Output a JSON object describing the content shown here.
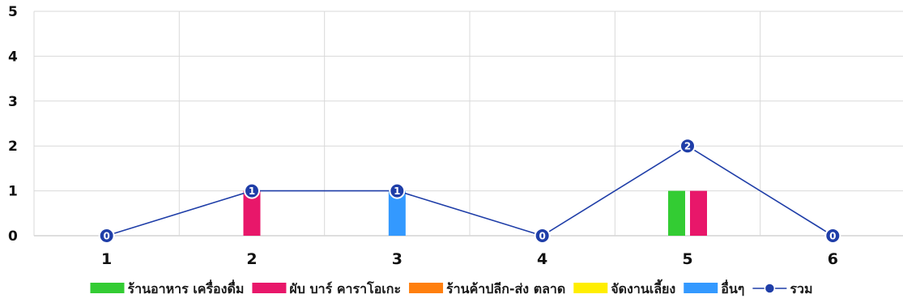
{
  "colors": {
    "background": "#ffffff",
    "grid": "#d9d9d9",
    "axis": "#bdbdbd",
    "total_line": "#1f3ea8",
    "total_marker": "#1f3ea8",
    "total_marker_border": "#ffffff"
  },
  "chart_data": {
    "type": "bar",
    "title": "",
    "xlabel": "",
    "ylabel": "",
    "categories": [
      "1",
      "2",
      "3",
      "4",
      "5",
      "6"
    ],
    "ylim": [
      0,
      5
    ],
    "yticks": [
      "0",
      "1",
      "2",
      "3",
      "4",
      "5"
    ],
    "grid": true,
    "legend_position": "bottom",
    "series": [
      {
        "name": "ร้านอาหาร เครื่องดื่ม",
        "type": "bar",
        "color": "#33cc33",
        "values": [
          0,
          0,
          0,
          0,
          1,
          0
        ]
      },
      {
        "name": "ผับ บาร์ คาราโอเกะ",
        "type": "bar",
        "color": "#e8176a",
        "values": [
          0,
          1,
          0,
          0,
          1,
          0
        ]
      },
      {
        "name": "ร้านค้าปลีก-ส่ง ตลาด",
        "type": "bar",
        "color": "#ff7f0e",
        "values": [
          0,
          0,
          0,
          0,
          0,
          0
        ]
      },
      {
        "name": "จัดงานเลี้ยง",
        "type": "bar",
        "color": "#ffee00",
        "values": [
          0,
          0,
          0,
          0,
          0,
          0
        ]
      },
      {
        "name": "อื่นๆ",
        "type": "bar",
        "color": "#3399ff",
        "values": [
          0,
          0,
          1,
          0,
          0,
          0
        ]
      },
      {
        "name": "รวม",
        "type": "line",
        "color": "#1f3ea8",
        "values": [
          0,
          1,
          1,
          0,
          2,
          0
        ],
        "point_labels": [
          "0",
          "1",
          "1",
          "0",
          "2",
          "0"
        ]
      }
    ]
  }
}
